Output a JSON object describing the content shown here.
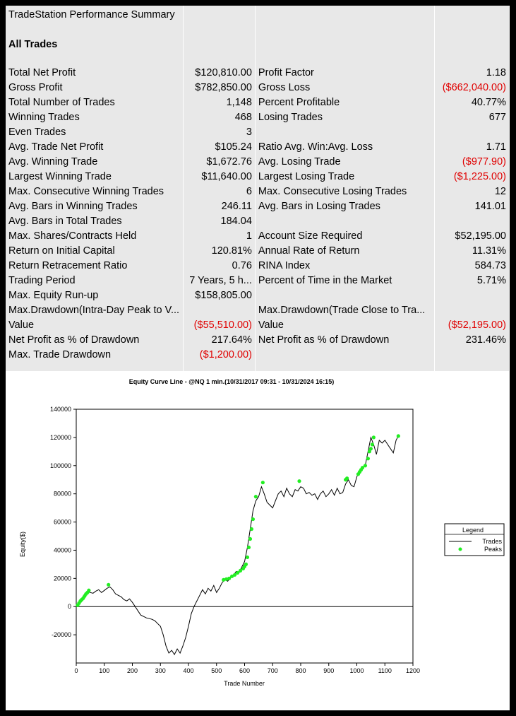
{
  "report": {
    "title": "TradeStation Performance Summary",
    "section": "All Trades",
    "rows": [
      {
        "l1": "Total Net Profit",
        "v1": "$120,810.00",
        "l2": "Profit Factor",
        "v2": "1.18"
      },
      {
        "l1": "Gross Profit",
        "v1": "$782,850.00",
        "l2": "Gross Loss",
        "v2": "($662,040.00)",
        "neg2": true
      },
      {
        "l1": "Total Number of Trades",
        "v1": "1,148",
        "l2": "Percent Profitable",
        "v2": "40.77%"
      },
      {
        "l1": "Winning Trades",
        "v1": "468",
        "l2": "Losing Trades",
        "v2": "677"
      },
      {
        "l1": "Even Trades",
        "v1": "3",
        "l2": "",
        "v2": ""
      },
      {
        "l1": "Avg. Trade Net Profit",
        "v1": "$105.24",
        "l2": "Ratio Avg. Win:Avg. Loss",
        "v2": "1.71"
      },
      {
        "l1": "Avg. Winning Trade",
        "v1": "$1,672.76",
        "l2": "Avg. Losing Trade",
        "v2": "($977.90)",
        "neg2": true
      },
      {
        "l1": "Largest Winning Trade",
        "v1": "$11,640.00",
        "l2": "Largest Losing Trade",
        "v2": "($1,225.00)",
        "neg2": true
      },
      {
        "l1": "Max. Consecutive Winning Trades",
        "v1": "6",
        "l2": "Max. Consecutive Losing Trades",
        "v2": "12"
      },
      {
        "l1": "Avg. Bars in Winning Trades",
        "v1": "246.11",
        "l2": "Avg. Bars in Losing Trades",
        "v2": "141.01"
      },
      {
        "l1": "Avg. Bars in Total Trades",
        "v1": "184.04",
        "l2": "",
        "v2": ""
      },
      {
        "l1": "Max. Shares/Contracts Held",
        "v1": "1",
        "l2": "Account Size Required",
        "v2": "$52,195.00"
      },
      {
        "l1": "Return on Initial Capital",
        "v1": "120.81%",
        "l2": "Annual Rate of Return",
        "v2": "11.31%"
      },
      {
        "l1": "Return Retracement Ratio",
        "v1": "0.76",
        "l2": "RINA Index",
        "v2": "584.73"
      },
      {
        "l1": "Trading Period",
        "v1": "7 Years, 5 h...",
        "l2": "Percent of Time in the Market",
        "v2": "5.71%"
      },
      {
        "l1": "Max. Equity Run-up",
        "v1": "$158,805.00",
        "l2": "",
        "v2": ""
      },
      {
        "l1": "Max.Drawdown(Intra-Day Peak to V...",
        "v1": "",
        "l2": "Max.Drawdown(Trade Close to Tra...",
        "v2": ""
      },
      {
        "l1": "Value",
        "v1": "($55,510.00)",
        "neg1": true,
        "l2": "Value",
        "v2": "($52,195.00)",
        "neg2": true
      },
      {
        "l1": "Net Profit as % of Drawdown",
        "v1": "217.64%",
        "l2": "Net Profit as % of Drawdown",
        "v2": "231.46%"
      },
      {
        "l1": "Max. Trade Drawdown",
        "v1": "($1,200.00)",
        "neg1": true,
        "l2": "",
        "v2": ""
      }
    ]
  },
  "chart": {
    "title": "Equity Curve Line - @NQ 1 min.(10/31/2017 09:31 - 10/31/2024 16:15)",
    "legend": {
      "title": "Legend",
      "trades": "Trades",
      "peaks": "Peaks"
    },
    "line_color": "#000000",
    "peak_color": "#22ee22"
  },
  "chart_data": {
    "type": "line",
    "title": "Equity Curve Line - @NQ 1 min.(10/31/2017 09:31 - 10/31/2024 16:15)",
    "xlabel": "Trade Number",
    "ylabel": "Equity($)",
    "xlim": [
      0,
      1200
    ],
    "ylim": [
      -40000,
      140000
    ],
    "xticks": [
      0,
      100,
      200,
      300,
      400,
      500,
      600,
      700,
      800,
      900,
      1000,
      1100,
      1200
    ],
    "yticks": [
      -20000,
      0,
      20000,
      40000,
      60000,
      80000,
      100000,
      120000,
      140000
    ],
    "ytick_labels": [
      "-20000",
      "0",
      "20000",
      "40000",
      "60000",
      "80000",
      "100000",
      "120000",
      "140000"
    ],
    "grid": true,
    "legend_position": "right",
    "series": [
      {
        "name": "Trades",
        "kind": "line",
        "x": [
          0,
          10,
          20,
          30,
          40,
          50,
          60,
          70,
          80,
          90,
          100,
          110,
          120,
          130,
          140,
          150,
          160,
          170,
          180,
          190,
          200,
          210,
          220,
          230,
          240,
          250,
          260,
          270,
          280,
          290,
          300,
          310,
          320,
          330,
          340,
          350,
          360,
          370,
          380,
          390,
          400,
          410,
          420,
          430,
          440,
          450,
          460,
          470,
          480,
          490,
          500,
          510,
          520,
          530,
          540,
          550,
          560,
          570,
          580,
          590,
          600,
          610,
          620,
          630,
          640,
          650,
          660,
          670,
          680,
          690,
          700,
          710,
          720,
          730,
          740,
          750,
          760,
          770,
          780,
          790,
          800,
          810,
          820,
          830,
          840,
          850,
          860,
          870,
          880,
          890,
          900,
          910,
          920,
          930,
          940,
          950,
          960,
          970,
          980,
          990,
          1000,
          1010,
          1020,
          1030,
          1040,
          1050,
          1060,
          1070,
          1080,
          1090,
          1100,
          1110,
          1120,
          1130,
          1140,
          1148
        ],
        "y": [
          0,
          3000,
          6000,
          9000,
          11000,
          10000,
          9500,
          11000,
          12000,
          10000,
          11500,
          13000,
          14000,
          12000,
          9000,
          8000,
          7000,
          5000,
          4000,
          5500,
          3000,
          0,
          -3000,
          -6000,
          -7000,
          -8000,
          -8500,
          -9000,
          -10000,
          -12000,
          -14000,
          -20000,
          -28000,
          -33000,
          -31000,
          -34000,
          -30000,
          -33000,
          -28000,
          -22000,
          -14000,
          -5000,
          0,
          4000,
          8000,
          12000,
          9000,
          13000,
          11000,
          15000,
          10000,
          13000,
          17000,
          19000,
          18000,
          21000,
          22000,
          25000,
          24000,
          28000,
          32000,
          42000,
          55000,
          68000,
          75000,
          78000,
          85000,
          80000,
          74000,
          72000,
          70000,
          75000,
          80000,
          82000,
          78000,
          84000,
          80000,
          78000,
          83000,
          82000,
          85000,
          84000,
          80000,
          81000,
          79000,
          80000,
          76000,
          80000,
          82000,
          78000,
          80000,
          83000,
          79000,
          84000,
          80000,
          81000,
          87000,
          90000,
          86000,
          85000,
          92000,
          97000,
          98000,
          100000,
          110000,
          120000,
          115000,
          108000,
          118000,
          116000,
          118000,
          115000,
          112000,
          109000,
          118000,
          121000
        ]
      },
      {
        "name": "Peaks",
        "kind": "scatter",
        "x": [
          5,
          10,
          15,
          20,
          25,
          30,
          35,
          40,
          45,
          115,
          525,
          535,
          545,
          555,
          565,
          575,
          585,
          595,
          600,
          605,
          610,
          615,
          620,
          625,
          630,
          640,
          665,
          795,
          960,
          965,
          1005,
          1010,
          1015,
          1020,
          1030,
          1040,
          1045,
          1050,
          1055,
          1060,
          1148
        ],
        "y": [
          1000,
          2500,
          4000,
          5000,
          6000,
          7500,
          9000,
          10000,
          11500,
          15500,
          19000,
          19500,
          20000,
          21500,
          22500,
          24000,
          25500,
          27000,
          28500,
          30000,
          35000,
          42000,
          48000,
          55000,
          62000,
          78000,
          88000,
          89000,
          90000,
          91000,
          94000,
          95500,
          97000,
          98500,
          100000,
          105000,
          110000,
          112000,
          115000,
          120000,
          121000
        ]
      }
    ]
  }
}
